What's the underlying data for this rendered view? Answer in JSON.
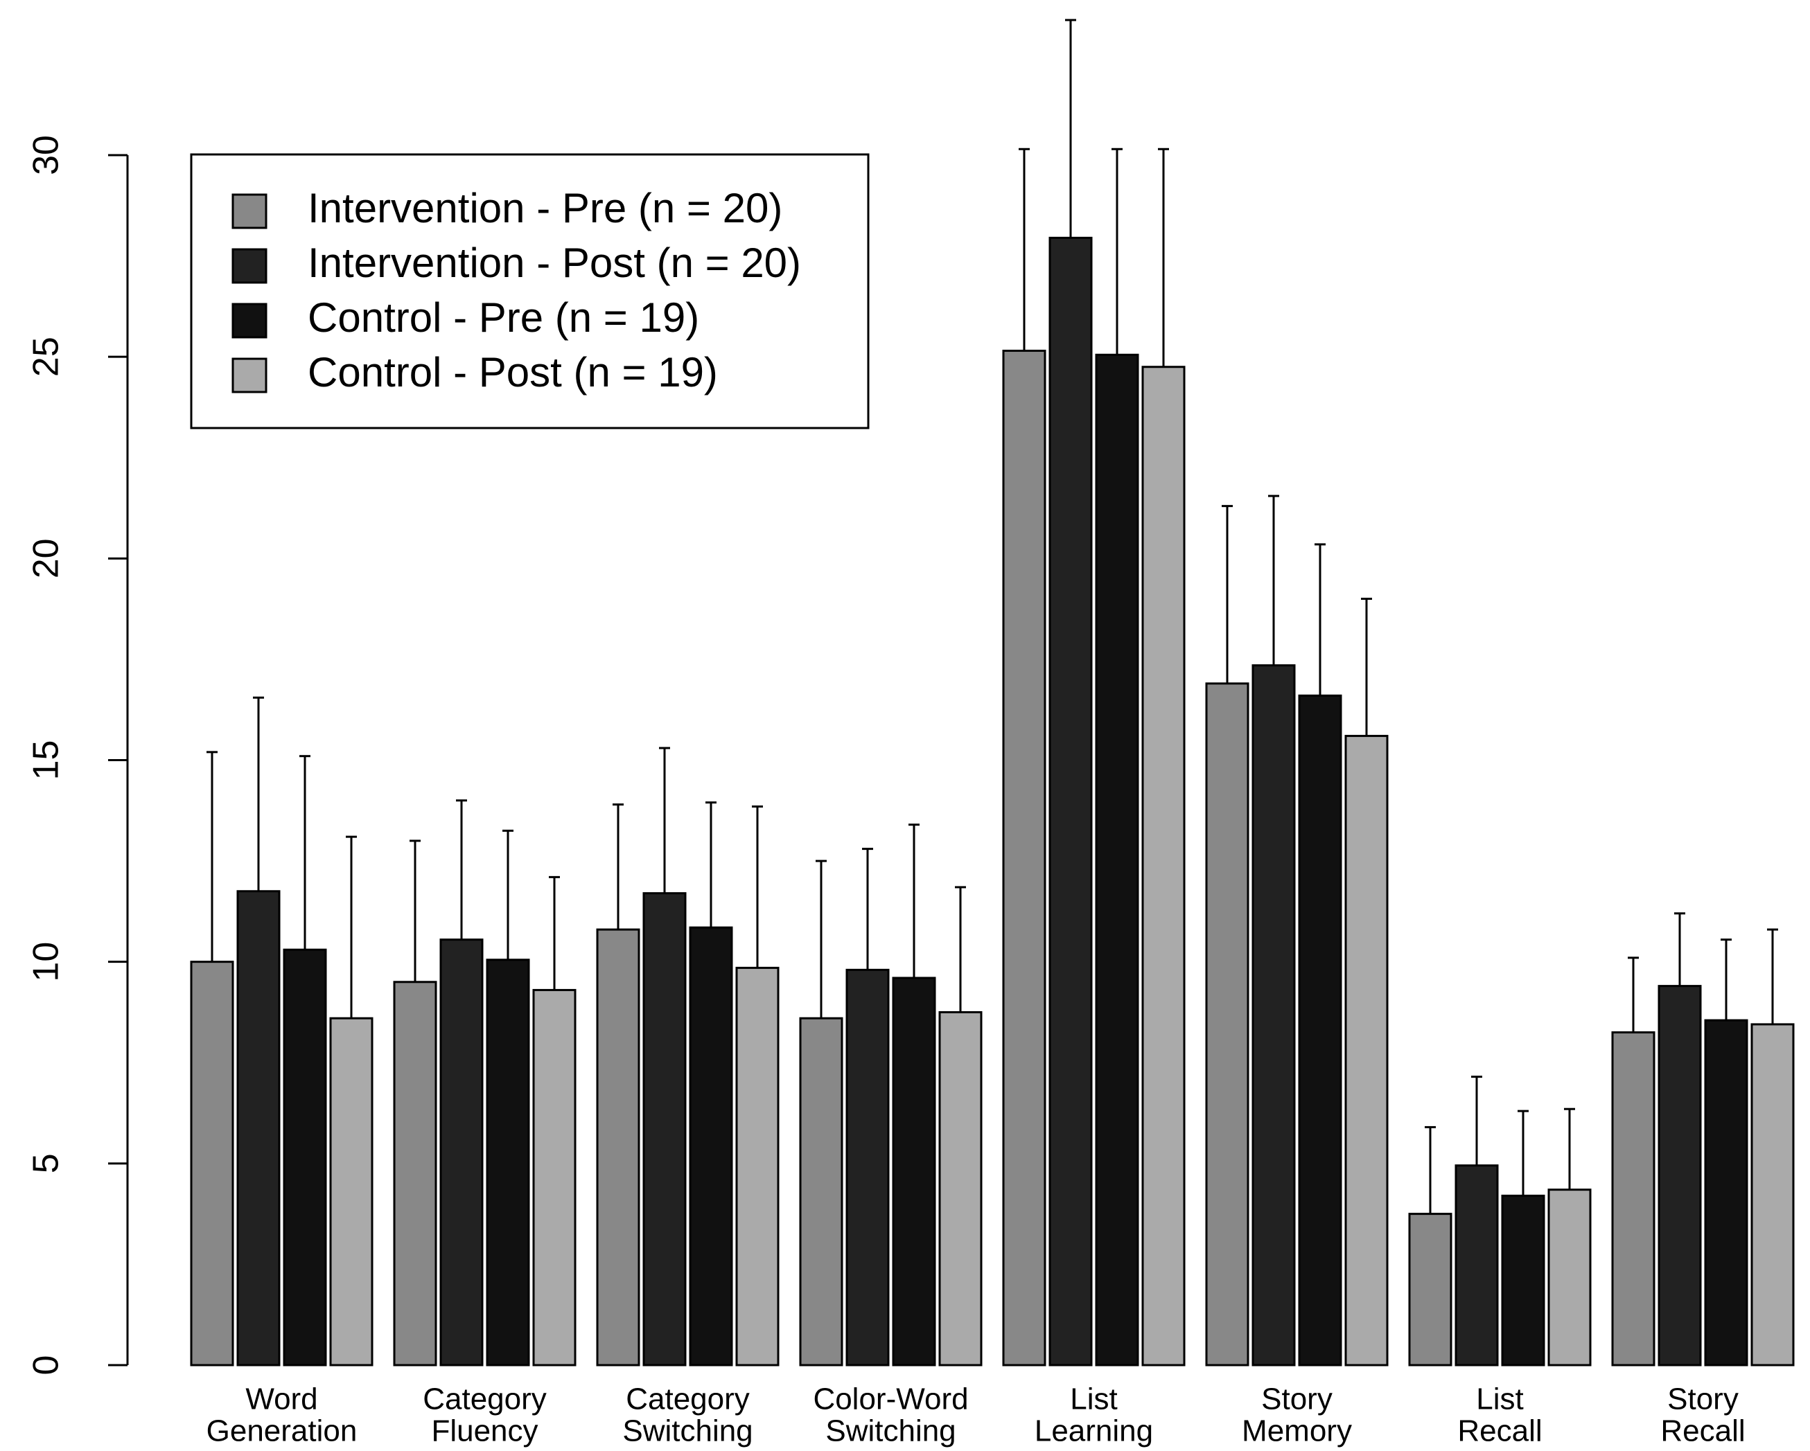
{
  "chart_data": {
    "type": "bar",
    "categories": [
      [
        "Word",
        "Generation"
      ],
      [
        "Category",
        "Fluency"
      ],
      [
        "Category",
        "Switching"
      ],
      [
        "Color-Word",
        "Switching"
      ],
      [
        "List",
        "Learning"
      ],
      [
        "Story",
        "Memory"
      ],
      [
        "List",
        "Recall"
      ],
      [
        "Story",
        "Recall"
      ]
    ],
    "series": [
      {
        "name": "Intervention - Pre (n = 20)",
        "color": "#888888",
        "values": [
          10.0,
          9.5,
          10.8,
          8.6,
          25.15,
          16.9,
          3.75,
          8.25
        ],
        "errors": [
          5.2,
          3.5,
          3.1,
          3.9,
          5.0,
          4.4,
          2.15,
          1.85
        ]
      },
      {
        "name": "Intervention - Post (n = 20)",
        "color": "#222222",
        "values": [
          11.75,
          10.55,
          11.7,
          9.8,
          27.95,
          17.35,
          4.95,
          9.4
        ],
        "errors": [
          4.8,
          3.45,
          3.6,
          3.0,
          5.4,
          4.2,
          2.2,
          1.8
        ]
      },
      {
        "name": "Control - Pre (n = 19)",
        "color": "#111111",
        "values": [
          10.3,
          10.05,
          10.85,
          9.6,
          25.05,
          16.6,
          4.2,
          8.55
        ],
        "errors": [
          4.8,
          3.2,
          3.1,
          3.8,
          5.1,
          3.75,
          2.1,
          2.0
        ]
      },
      {
        "name": "Control - Post (n = 19)",
        "color": "#aaaaaa",
        "values": [
          8.6,
          9.3,
          9.85,
          8.75,
          24.75,
          15.6,
          4.35,
          8.45
        ],
        "errors": [
          4.5,
          2.8,
          4.0,
          3.1,
          5.4,
          3.4,
          2.0,
          2.35
        ]
      }
    ],
    "ylim": [
      0,
      30
    ],
    "yticks": [
      0,
      5,
      10,
      15,
      20,
      25,
      30
    ],
    "legend": "top-left"
  }
}
